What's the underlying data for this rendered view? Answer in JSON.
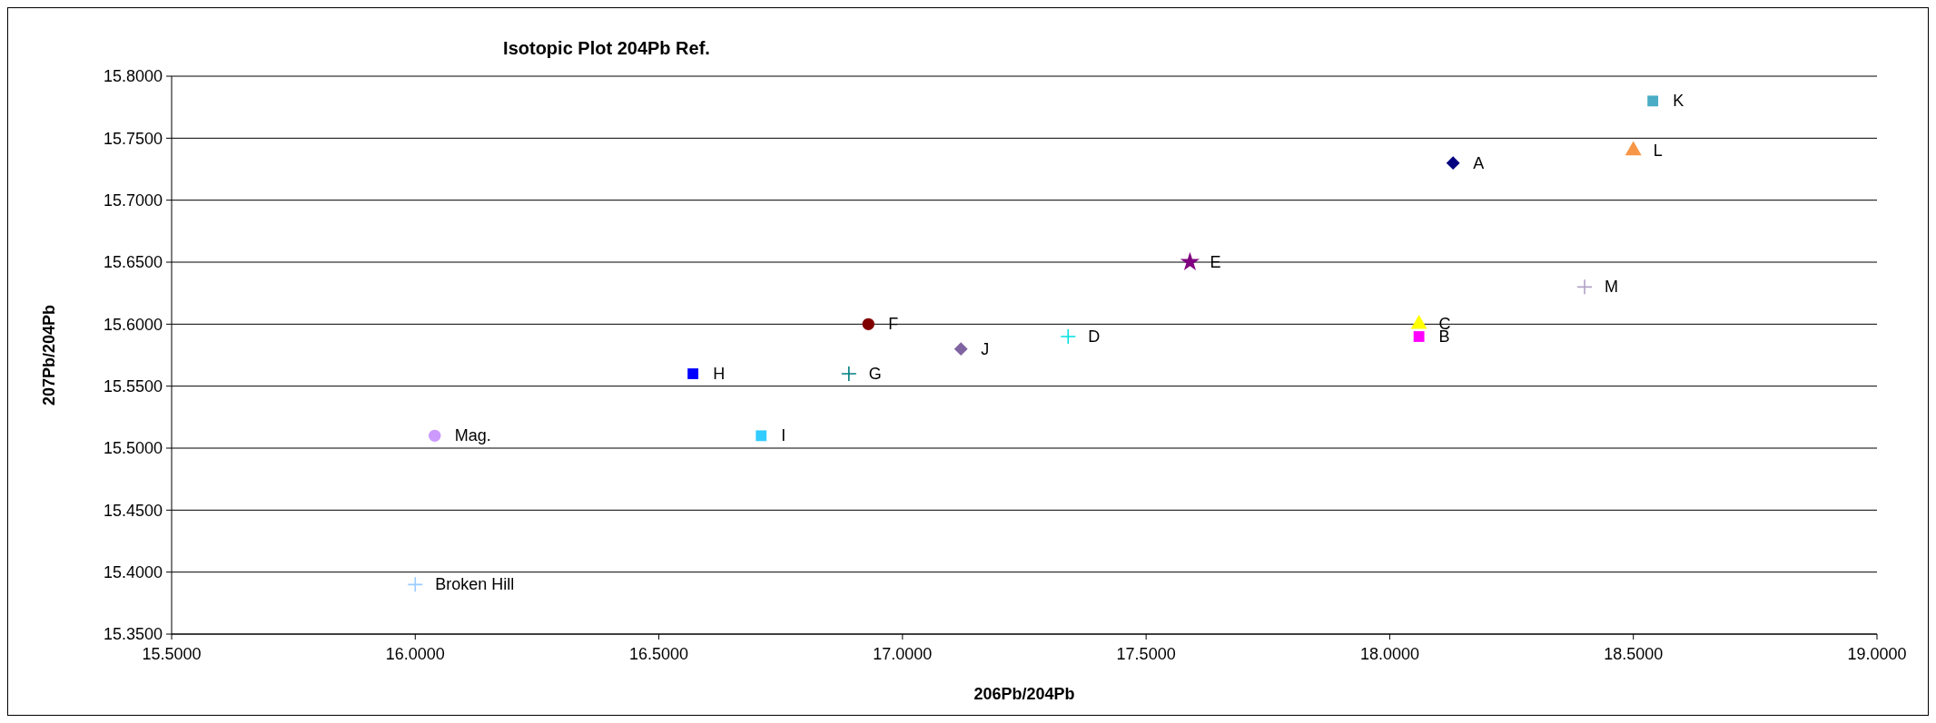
{
  "chart_data": {
    "type": "scatter",
    "title": "Isotopic Plot 204Pb Ref.",
    "xlabel": "206Pb/204Pb",
    "ylabel": "207Pb/204Pb",
    "xlim": [
      15.5,
      19.0
    ],
    "xticks": [
      {
        "value": 15.5,
        "label": "15.5000"
      },
      {
        "value": 16.0,
        "label": "16.0000"
      },
      {
        "value": 16.5,
        "label": "16.5000"
      },
      {
        "value": 17.0,
        "label": "17.0000"
      },
      {
        "value": 17.5,
        "label": "17.5000"
      },
      {
        "value": 18.0,
        "label": "18.0000"
      },
      {
        "value": 18.5,
        "label": "18.5000"
      },
      {
        "value": 19.0,
        "label": "19.0000"
      }
    ],
    "ylim": [
      15.35,
      15.8
    ],
    "yticks": [
      {
        "value": 15.35,
        "label": "15.3500"
      },
      {
        "value": 15.4,
        "label": "15.4000"
      },
      {
        "value": 15.45,
        "label": "15.4500"
      },
      {
        "value": 15.5,
        "label": "15.5000"
      },
      {
        "value": 15.55,
        "label": "15.5500"
      },
      {
        "value": 15.6,
        "label": "15.6000"
      },
      {
        "value": 15.65,
        "label": "15.6500"
      },
      {
        "value": 15.7,
        "label": "15.7000"
      },
      {
        "value": 15.75,
        "label": "15.7500"
      },
      {
        "value": 15.8,
        "label": "15.8000"
      }
    ],
    "grid": "y",
    "series": [
      {
        "name": "A",
        "color": "#000080",
        "marker": "diamond",
        "x": [
          18.13
        ],
        "values": [
          15.73
        ]
      },
      {
        "name": "B",
        "color": "#ff00ff",
        "marker": "square",
        "x": [
          18.06
        ],
        "values": [
          15.59
        ]
      },
      {
        "name": "C",
        "color": "#ffff00",
        "marker": "triangle",
        "x": [
          18.06
        ],
        "values": [
          15.6
        ]
      },
      {
        "name": "D",
        "color": "#00e0e0",
        "marker": "cross",
        "x": [
          17.34
        ],
        "values": [
          15.59
        ]
      },
      {
        "name": "E",
        "color": "#800080",
        "marker": "star",
        "x": [
          17.59
        ],
        "values": [
          15.65
        ]
      },
      {
        "name": "F",
        "color": "#800000",
        "marker": "circle",
        "x": [
          16.93
        ],
        "values": [
          15.6
        ]
      },
      {
        "name": "G",
        "color": "#008080",
        "marker": "cross",
        "x": [
          16.89
        ],
        "values": [
          15.56
        ]
      },
      {
        "name": "H",
        "color": "#0000ff",
        "marker": "square",
        "x": [
          16.57
        ],
        "values": [
          15.56
        ]
      },
      {
        "name": "I",
        "color": "#33ccff",
        "marker": "square",
        "x": [
          16.71
        ],
        "values": [
          15.51
        ]
      },
      {
        "name": "J",
        "color": "#8064a2",
        "marker": "diamond",
        "x": [
          17.12
        ],
        "values": [
          15.58
        ]
      },
      {
        "name": "K",
        "color": "#4bacc6",
        "marker": "square",
        "x": [
          18.54
        ],
        "values": [
          15.78
        ]
      },
      {
        "name": "L",
        "color": "#f79646",
        "marker": "triangle",
        "x": [
          18.5
        ],
        "values": [
          15.74
        ]
      },
      {
        "name": "M",
        "color": "#b3a2c7",
        "marker": "cross",
        "x": [
          18.4
        ],
        "values": [
          15.63
        ]
      },
      {
        "name": "Mag.",
        "color": "#cc99ff",
        "marker": "circle",
        "x": [
          16.04
        ],
        "values": [
          15.51
        ]
      },
      {
        "name": "Broken Hill",
        "color": "#99ccff",
        "marker": "cross",
        "x": [
          16.0
        ],
        "values": [
          15.39
        ]
      }
    ]
  }
}
